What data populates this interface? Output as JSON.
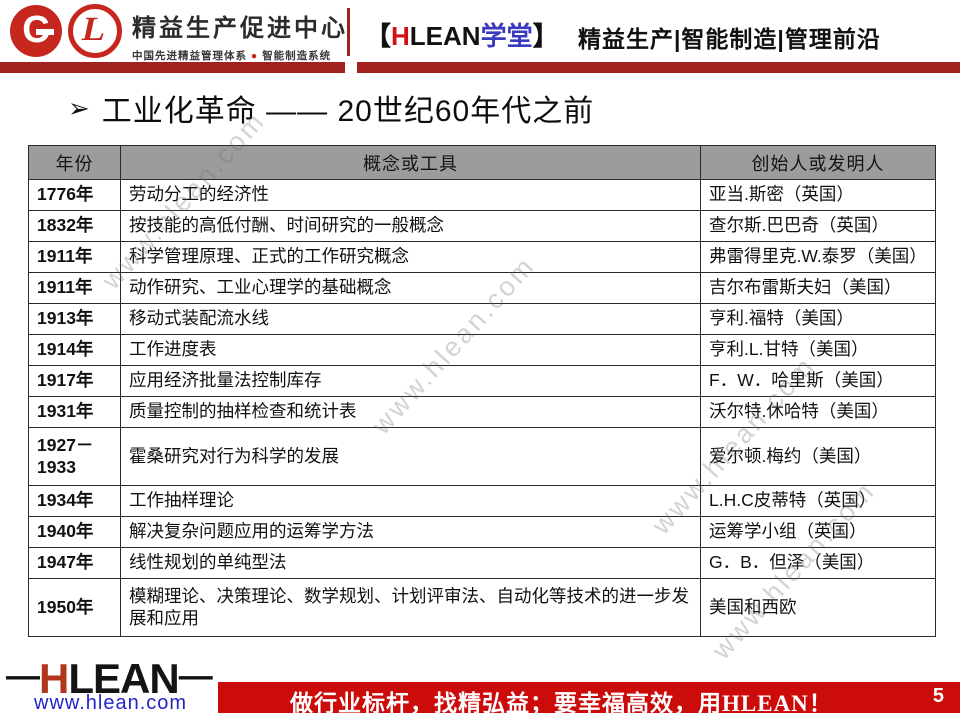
{
  "header": {
    "logo_c_letter": "C",
    "logo_l_letter": "L",
    "org_name": "精益生产促进中心",
    "org_tagline_left": "中国先进精益管理体系",
    "org_tagline_dot": "●",
    "org_tagline_right": "智能制造系统",
    "brand_open": "【",
    "brand_h": "H",
    "brand_lean": "LEAN",
    "brand_xuetang": "学堂",
    "brand_close": "】",
    "slogan": "精益生产|智能制造|管理前沿"
  },
  "title": {
    "bullet": "➢",
    "text": "工业化革命 —— 20世纪60年代之前"
  },
  "table": {
    "columns": [
      "年份",
      "概念或工具",
      "创始人或发明人"
    ],
    "rows": [
      {
        "year": "1776年",
        "concept": "劳动分工的经济性",
        "creator": "亚当.斯密（英国）",
        "tall": false
      },
      {
        "year": "1832年",
        "concept": "按技能的高低付酬、时间研究的一般概念",
        "creator": "查尔斯.巴巴奇（英国）",
        "tall": false
      },
      {
        "year": "1911年",
        "concept": "科学管理原理、正式的工作研究概念",
        "creator": "弗雷得里克.W.泰罗（美国）",
        "tall": false
      },
      {
        "year": "1911年",
        "concept": "动作研究、工业心理学的基础概念",
        "creator": "吉尔布雷斯夫妇（美国）",
        "tall": false
      },
      {
        "year": "1913年",
        "concept": "移动式装配流水线",
        "creator": "亨利.福特（美国）",
        "tall": false
      },
      {
        "year": "1914年",
        "concept": "工作进度表",
        "creator": "亨利.L.甘特（美国）",
        "tall": false
      },
      {
        "year": "1917年",
        "concept": "应用经济批量法控制库存",
        "creator": "F．W．哈里斯（美国）",
        "tall": false
      },
      {
        "year": "1931年",
        "concept": "质量控制的抽样检查和统计表",
        "creator": "沃尔特.休哈特（美国）",
        "tall": false
      },
      {
        "year": "1927－1933",
        "concept": "霍桑研究对行为科学的发展",
        "creator": "爱尔顿.梅约（美国）",
        "tall": true
      },
      {
        "year": "1934年",
        "concept": "工作抽样理论",
        "creator": "L.H.C皮蒂特（英国）",
        "tall": false
      },
      {
        "year": "1940年",
        "concept": "解决复杂问题应用的运筹学方法",
        "creator": "运筹学小组（英国）",
        "tall": false
      },
      {
        "year": "1947年",
        "concept": "线性规划的单纯型法",
        "creator": "G．B．但泽（美国）",
        "tall": false
      },
      {
        "year": "1950年",
        "concept": "模糊理论、决策理论、数学规划、计划评审法、自动化等技术的进一步发展和应用",
        "creator": "美国和西欧",
        "tall": true
      }
    ]
  },
  "watermark_text": "www.hlean.com",
  "footer": {
    "logo_dash_left": "—",
    "logo_h": "H",
    "logo_rest": "LEAN",
    "logo_dash_right": "—",
    "website": "www.hlean.com",
    "banner_text": "做行业标杆，找精弘益；要幸福高效，用HLEAN！",
    "page_number": "5"
  },
  "colors": {
    "bar_red": "#a2211f",
    "banner_red": "#cc0b0b",
    "logo_red": "#c5271f",
    "brand_h_red": "#d01212",
    "xuetang_blue": "#3a3abf",
    "site_blue": "#2424c8",
    "table_header_gray": "#9c9c9c"
  }
}
